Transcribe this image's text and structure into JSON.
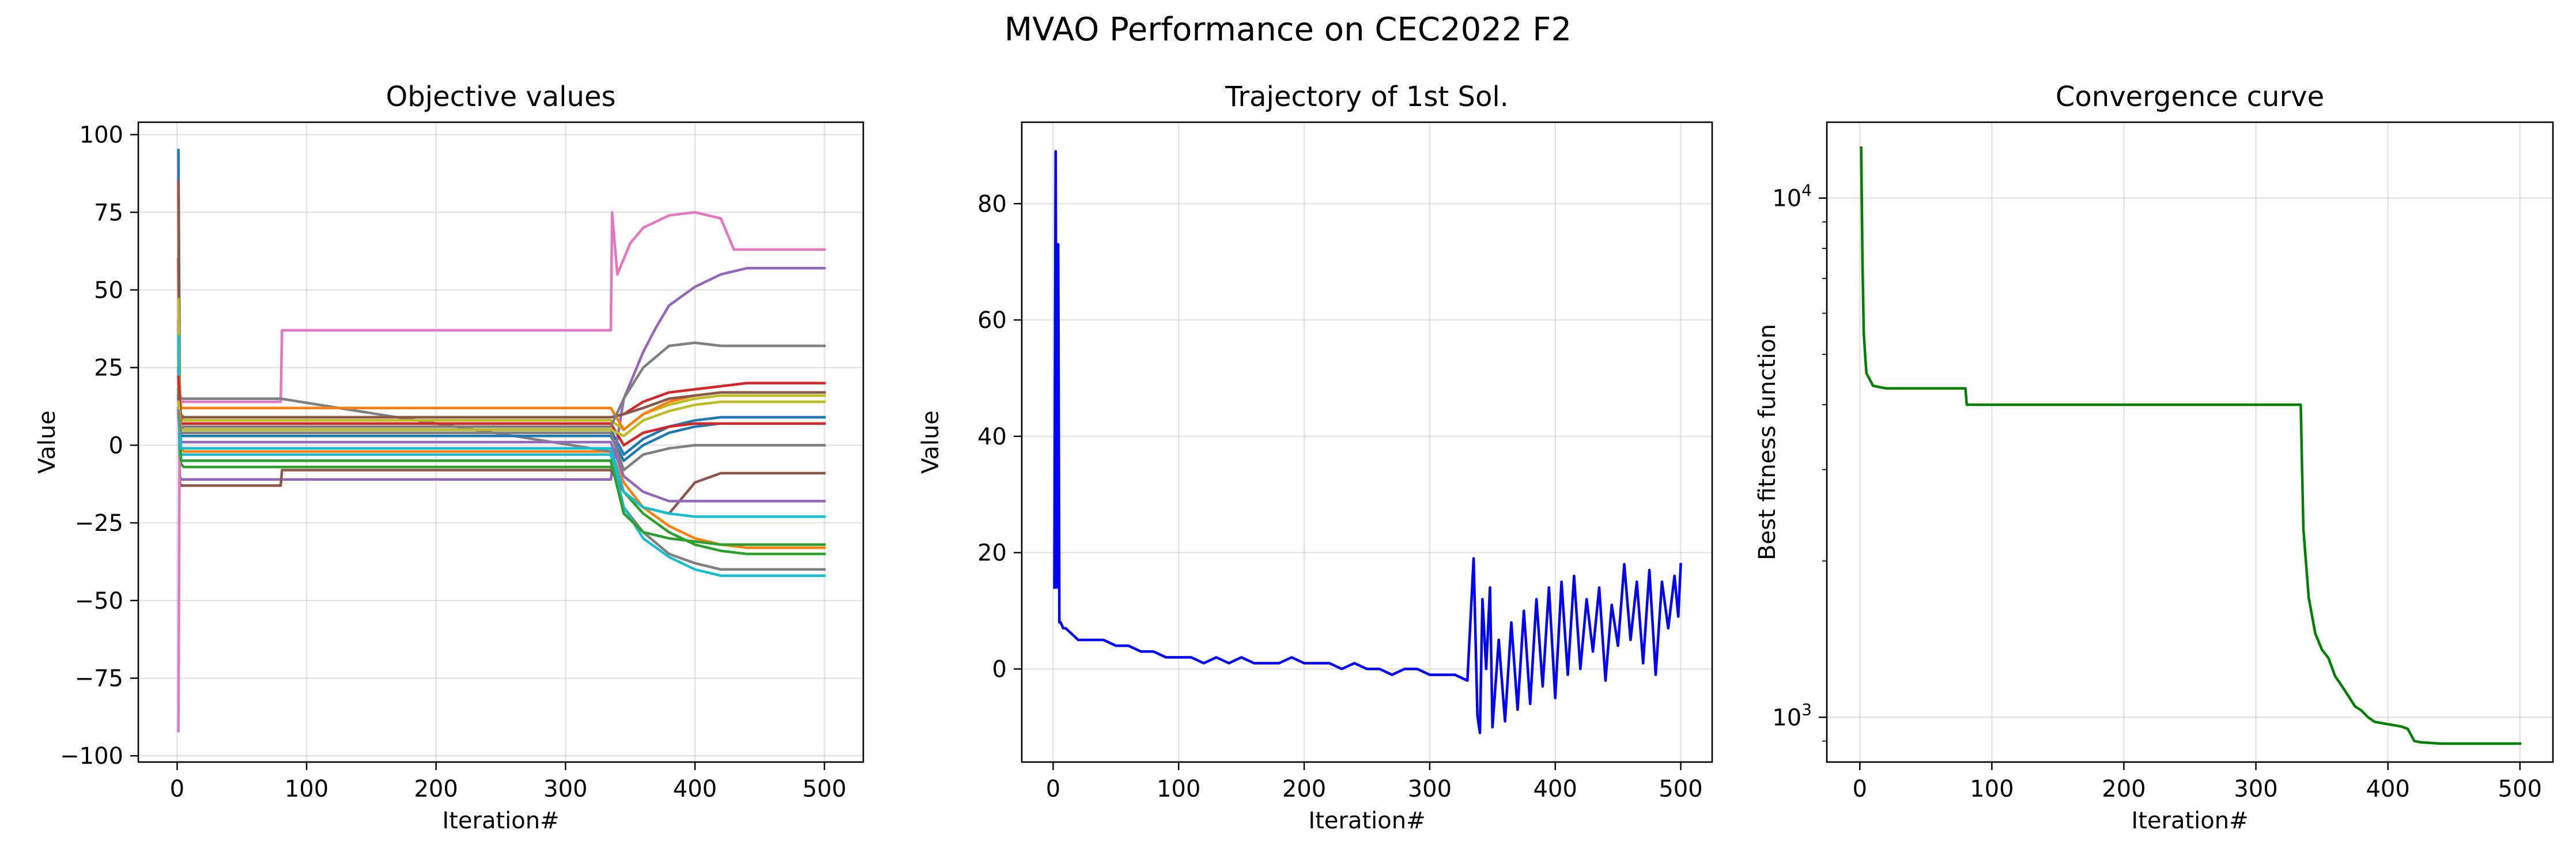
{
  "figure": {
    "title": "MVAO Performance on CEC2022 F2"
  },
  "chart_data": [
    {
      "type": "line",
      "title": "Objective values",
      "xlabel": "Iteration#",
      "ylabel": "Value",
      "xlim": [
        -30,
        530
      ],
      "ylim": [
        -102,
        104
      ],
      "xticks": [
        0,
        100,
        200,
        300,
        400,
        500
      ],
      "yticks": [
        -100,
        -75,
        -50,
        -25,
        0,
        25,
        50,
        75,
        100
      ],
      "grid": true,
      "series": [
        {
          "color": "#1f77b4",
          "x": [
            1,
            2,
            3,
            5,
            80,
            335,
            345,
            360,
            380,
            400,
            420,
            440,
            460,
            480,
            500
          ],
          "y": [
            95,
            20,
            6,
            5,
            5,
            5,
            -3,
            2,
            6,
            8,
            9,
            9,
            9,
            9,
            9
          ]
        },
        {
          "color": "#ff7f0e",
          "x": [
            1,
            2,
            3,
            5,
            80,
            335,
            345,
            360,
            380,
            400,
            420,
            440,
            460,
            480,
            500
          ],
          "y": [
            30,
            8,
            -1,
            -2,
            -2,
            -2,
            -12,
            -20,
            -26,
            -30,
            -32,
            -33,
            -33,
            -33,
            -33
          ]
        },
        {
          "color": "#2ca02c",
          "x": [
            1,
            2,
            3,
            5,
            80,
            335,
            345,
            360,
            380,
            400,
            420,
            440,
            460,
            480,
            500
          ],
          "y": [
            40,
            -3,
            -6,
            -7,
            -7,
            -7,
            -15,
            -22,
            -28,
            -32,
            -34,
            -35,
            -35,
            -35,
            -35
          ]
        },
        {
          "color": "#d62728",
          "x": [
            1,
            2,
            3,
            5,
            80,
            335,
            345,
            360,
            380,
            400,
            420,
            440,
            460,
            480,
            500
          ],
          "y": [
            60,
            12,
            10,
            9,
            9,
            9,
            10,
            14,
            17,
            18,
            19,
            20,
            20,
            20,
            20
          ]
        },
        {
          "color": "#9467bd",
          "x": [
            1,
            2,
            3,
            5,
            80,
            335,
            345,
            360,
            370,
            380,
            390,
            400,
            420,
            440,
            460,
            480,
            500
          ],
          "y": [
            25,
            -10,
            -11,
            -11,
            -11,
            -11,
            15,
            30,
            38,
            45,
            48,
            51,
            55,
            57,
            57,
            57,
            57
          ]
        },
        {
          "color": "#8c564b",
          "x": [
            1,
            2,
            3,
            5,
            80,
            81,
            335,
            345,
            360,
            380,
            400,
            420,
            440,
            460,
            480,
            500
          ],
          "y": [
            85,
            -12,
            -13,
            -13,
            -13,
            -8,
            -8,
            -15,
            -20,
            -22,
            -12,
            -9,
            -9,
            -9,
            -9,
            -9
          ]
        },
        {
          "color": "#e377c2",
          "x": [
            1,
            2,
            3,
            5,
            80,
            81,
            335,
            336,
            340,
            350,
            360,
            370,
            380,
            400,
            420,
            430,
            440,
            460,
            480,
            500
          ],
          "y": [
            -92,
            14,
            14,
            14,
            14,
            37,
            37,
            75,
            55,
            65,
            70,
            72,
            74,
            75,
            73,
            63,
            63,
            63,
            63,
            63
          ]
        },
        {
          "color": "#7f7f7f",
          "x": [
            1,
            2,
            3,
            5,
            80,
            335,
            345,
            360,
            380,
            400,
            420,
            440,
            460,
            480,
            500
          ],
          "y": [
            40,
            17,
            15,
            15,
            15,
            -2,
            -20,
            -28,
            -35,
            -38,
            -40,
            -40,
            -40,
            -40,
            -40
          ]
        },
        {
          "color": "#bcbd22",
          "x": [
            1,
            2,
            3,
            5,
            80,
            335,
            345,
            360,
            380,
            400,
            420,
            440,
            460,
            480,
            500
          ],
          "y": [
            47,
            12,
            10,
            8,
            8,
            8,
            5,
            10,
            13,
            15,
            16,
            16,
            16,
            16,
            16
          ]
        },
        {
          "color": "#17becf",
          "x": [
            1,
            2,
            3,
            5,
            80,
            335,
            345,
            360,
            380,
            400,
            420,
            440,
            460,
            480,
            500
          ],
          "y": [
            35,
            -3,
            -3,
            -3,
            -3,
            -3,
            -20,
            -30,
            -36,
            -40,
            -42,
            -42,
            -42,
            -42,
            -42
          ]
        },
        {
          "color": "#1f77b4",
          "x": [
            1,
            3,
            5,
            80,
            335,
            345,
            360,
            380,
            400,
            420,
            440,
            460,
            480,
            500
          ],
          "y": [
            15,
            3,
            3,
            3,
            3,
            -5,
            0,
            4,
            6,
            7,
            7,
            7,
            7,
            7
          ]
        },
        {
          "color": "#ff7f0e",
          "x": [
            1,
            3,
            5,
            80,
            335,
            345,
            360,
            380,
            400,
            420,
            440,
            460,
            480,
            500
          ],
          "y": [
            20,
            12,
            12,
            12,
            12,
            5,
            10,
            14,
            16,
            17,
            17,
            17,
            17,
            17
          ]
        },
        {
          "color": "#2ca02c",
          "x": [
            1,
            3,
            5,
            80,
            335,
            345,
            360,
            380,
            400,
            420,
            440,
            460,
            480,
            500
          ],
          "y": [
            18,
            -5,
            -5,
            -5,
            -5,
            -22,
            -28,
            -30,
            -31,
            -32,
            -32,
            -32,
            -32,
            -32
          ]
        },
        {
          "color": "#d62728",
          "x": [
            1,
            3,
            5,
            80,
            335,
            345,
            360,
            380,
            400,
            420,
            440,
            460,
            480,
            500
          ],
          "y": [
            22,
            7,
            7,
            7,
            7,
            0,
            4,
            6,
            7,
            7,
            7,
            7,
            7,
            7
          ]
        },
        {
          "color": "#9467bd",
          "x": [
            1,
            3,
            5,
            80,
            335,
            345,
            360,
            380,
            400,
            420,
            440,
            460,
            480,
            500
          ],
          "y": [
            12,
            1,
            1,
            1,
            1,
            -10,
            -15,
            -18,
            -18,
            -18,
            -18,
            -18,
            -18,
            -18
          ]
        },
        {
          "color": "#8c564b",
          "x": [
            1,
            3,
            5,
            80,
            335,
            345,
            360,
            380,
            400,
            420,
            440,
            460,
            480,
            500
          ],
          "y": [
            16,
            9,
            9,
            9,
            9,
            10,
            12,
            15,
            16,
            17,
            17,
            17,
            17,
            17
          ]
        },
        {
          "color": "#7f7f7f",
          "x": [
            1,
            3,
            5,
            80,
            335,
            345,
            360,
            380,
            400,
            420,
            440,
            460,
            480,
            500
          ],
          "y": [
            10,
            6,
            6,
            6,
            6,
            15,
            25,
            32,
            33,
            32,
            32,
            32,
            32,
            32
          ]
        },
        {
          "color": "#bcbd22",
          "x": [
            1,
            3,
            5,
            80,
            335,
            345,
            360,
            380,
            400,
            420,
            440,
            460,
            480,
            500
          ],
          "y": [
            14,
            5,
            5,
            5,
            5,
            3,
            8,
            11,
            13,
            14,
            14,
            14,
            14,
            14
          ]
        },
        {
          "color": "#17becf",
          "x": [
            1,
            3,
            5,
            80,
            335,
            345,
            360,
            380,
            400,
            420,
            440,
            460,
            480,
            500
          ],
          "y": [
            9,
            -1,
            -1,
            -1,
            -1,
            -15,
            -20,
            -22,
            -23,
            -23,
            -23,
            -23,
            -23,
            -23
          ]
        },
        {
          "color": "#7f7f7f",
          "x": [
            1,
            3,
            5,
            80,
            335,
            345,
            360,
            380,
            400,
            420,
            440,
            460,
            480,
            500
          ],
          "y": [
            11,
            4,
            4,
            4,
            4,
            -8,
            -3,
            -1,
            0,
            0,
            0,
            0,
            0,
            0
          ]
        }
      ]
    },
    {
      "type": "line",
      "title": "Trajectory of 1st Sol.",
      "xlabel": "Iteration#",
      "ylabel": "Value",
      "xlim": [
        -25,
        525
      ],
      "ylim": [
        -16,
        94
      ],
      "xticks": [
        0,
        100,
        200,
        300,
        400,
        500
      ],
      "yticks": [
        0,
        20,
        40,
        60,
        80
      ],
      "grid": true,
      "series": [
        {
          "color": "#0000ff",
          "x": [
            1,
            2,
            3,
            4,
            5,
            6,
            8,
            10,
            15,
            20,
            30,
            40,
            50,
            60,
            70,
            80,
            90,
            100,
            110,
            120,
            130,
            140,
            150,
            160,
            170,
            180,
            190,
            200,
            210,
            220,
            230,
            240,
            250,
            260,
            270,
            280,
            290,
            300,
            310,
            320,
            330,
            335,
            338,
            340,
            342,
            345,
            348,
            350,
            355,
            360,
            365,
            370,
            375,
            380,
            385,
            390,
            395,
            400,
            405,
            410,
            415,
            420,
            425,
            430,
            435,
            440,
            445,
            450,
            455,
            460,
            465,
            470,
            475,
            480,
            485,
            490,
            495,
            498,
            500
          ],
          "y": [
            14,
            89,
            14,
            73,
            8,
            8,
            7,
            7,
            6,
            5,
            5,
            5,
            4,
            4,
            3,
            3,
            2,
            2,
            2,
            1,
            2,
            1,
            2,
            1,
            1,
            1,
            2,
            1,
            1,
            1,
            0,
            1,
            0,
            0,
            -1,
            0,
            0,
            -1,
            -1,
            -1,
            -2,
            19,
            -8,
            -11,
            12,
            0,
            14,
            -10,
            5,
            -9,
            8,
            -7,
            10,
            -6,
            12,
            -3,
            14,
            -5,
            15,
            -1,
            16,
            0,
            12,
            3,
            14,
            -2,
            11,
            4,
            18,
            5,
            15,
            1,
            17,
            -1,
            15,
            7,
            16,
            9,
            18
          ]
        }
      ]
    },
    {
      "type": "line",
      "title": "Convergence curve",
      "xlabel": "Iteration#",
      "ylabel": "Best fitness function",
      "yscale": "log",
      "xlim": [
        -25,
        525
      ],
      "ylim": [
        820,
        14000
      ],
      "xticks": [
        0,
        100,
        200,
        300,
        400,
        500
      ],
      "yticks": [
        1000,
        10000
      ],
      "ytick_labels": [
        {
          "base": "10",
          "exp": "3"
        },
        {
          "base": "10",
          "exp": "4"
        }
      ],
      "grid": true,
      "series": [
        {
          "color": "#008000",
          "x": [
            1,
            2,
            3,
            4,
            5,
            8,
            10,
            20,
            80,
            81,
            334,
            335,
            336,
            340,
            345,
            350,
            355,
            360,
            365,
            370,
            375,
            380,
            385,
            390,
            400,
            410,
            415,
            420,
            425,
            440,
            460,
            480,
            500
          ],
          "y": [
            12500,
            7500,
            5500,
            5000,
            4600,
            4450,
            4350,
            4300,
            4300,
            4000,
            4000,
            3000,
            2300,
            1700,
            1450,
            1350,
            1300,
            1200,
            1150,
            1100,
            1050,
            1030,
            1000,
            980,
            970,
            960,
            950,
            900,
            895,
            890,
            890,
            890,
            890
          ]
        }
      ]
    }
  ]
}
